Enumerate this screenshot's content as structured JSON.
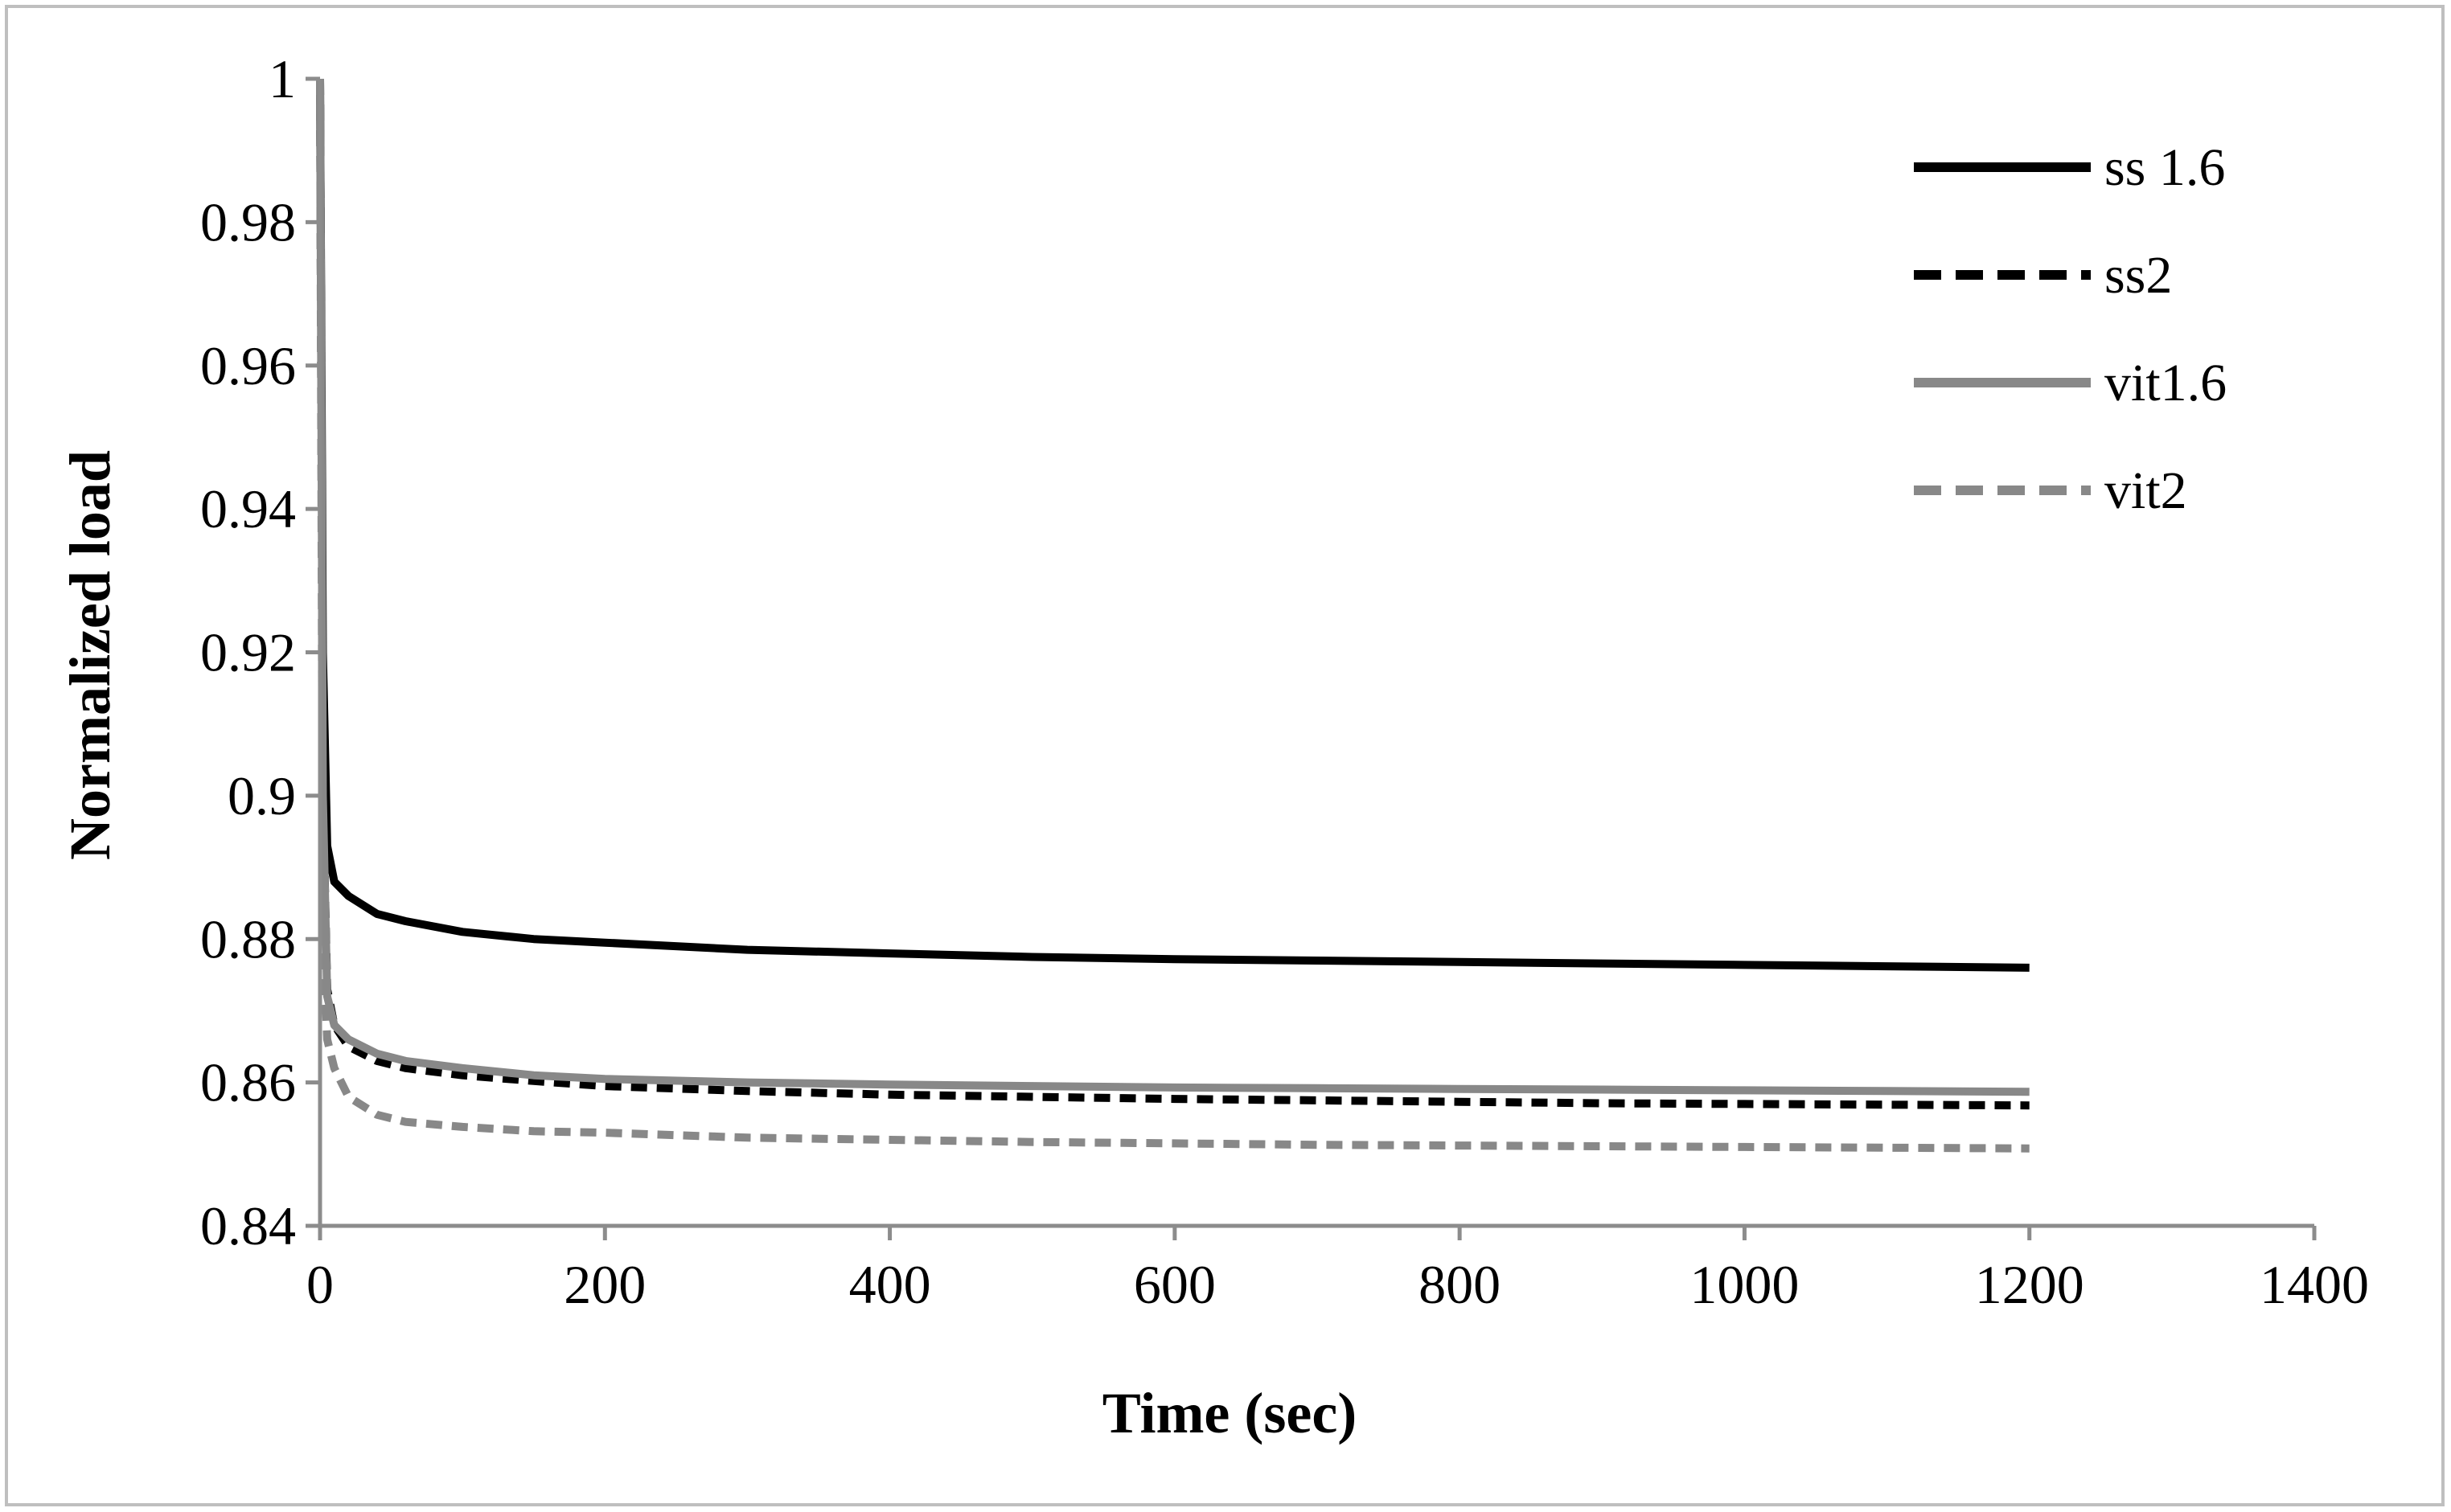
{
  "chart_data": {
    "type": "line",
    "title": "",
    "xlabel": "Time (sec)",
    "ylabel": "Normalized load",
    "xlim": [
      0,
      1400
    ],
    "ylim": [
      0.84,
      1
    ],
    "x_ticks": [
      0,
      200,
      400,
      600,
      800,
      1000,
      1200,
      1400
    ],
    "x_tick_labels": [
      "0",
      "200",
      "400",
      "600",
      "800",
      "1000",
      "1200",
      "1400"
    ],
    "y_ticks": [
      0.84,
      0.86,
      0.88,
      0.9,
      0.92,
      0.94,
      0.96,
      0.98,
      1
    ],
    "y_tick_labels": [
      "0.84",
      "0.86",
      "0.88",
      "0.9",
      "0.92",
      "0.94",
      "0.96",
      "0.98",
      "1"
    ],
    "grid": false,
    "legend_position": "top-right",
    "series": [
      {
        "name": "ss 1.6",
        "color": "#000000",
        "dash": "solid",
        "x": [
          0,
          1,
          2,
          5,
          10,
          20,
          40,
          60,
          100,
          150,
          200,
          300,
          400,
          500,
          600,
          700,
          800,
          900,
          1000,
          1100,
          1200
        ],
        "y": [
          1.0,
          0.96,
          0.92,
          0.893,
          0.888,
          0.886,
          0.8835,
          0.8825,
          0.881,
          0.88,
          0.8795,
          0.8785,
          0.878,
          0.8775,
          0.8772,
          0.877,
          0.8768,
          0.8766,
          0.8764,
          0.8762,
          0.876
        ]
      },
      {
        "name": "ss2",
        "color": "#000000",
        "dash": "dashed",
        "x": [
          0,
          1,
          2,
          5,
          10,
          20,
          40,
          60,
          100,
          150,
          200,
          300,
          400,
          500,
          600,
          700,
          800,
          900,
          1000,
          1100,
          1200
        ],
        "y": [
          1.0,
          0.95,
          0.9,
          0.873,
          0.868,
          0.865,
          0.863,
          0.862,
          0.861,
          0.8602,
          0.8595,
          0.8588,
          0.8583,
          0.858,
          0.8577,
          0.8575,
          0.8573,
          0.8571,
          0.857,
          0.8569,
          0.8568
        ]
      },
      {
        "name": "vit1.6",
        "color": "#888888",
        "dash": "solid",
        "x": [
          0,
          1,
          2,
          5,
          10,
          20,
          40,
          60,
          100,
          150,
          200,
          300,
          400,
          500,
          600,
          700,
          800,
          900,
          1000,
          1100,
          1200
        ],
        "y": [
          1.0,
          0.95,
          0.9,
          0.872,
          0.868,
          0.866,
          0.864,
          0.863,
          0.862,
          0.861,
          0.8605,
          0.86,
          0.8597,
          0.8595,
          0.8593,
          0.8592,
          0.8591,
          0.859,
          0.8589,
          0.8588,
          0.8587
        ]
      },
      {
        "name": "vit2",
        "color": "#888888",
        "dash": "dashed",
        "x": [
          0,
          1,
          2,
          5,
          10,
          20,
          40,
          60,
          100,
          150,
          200,
          300,
          400,
          500,
          600,
          700,
          800,
          900,
          1000,
          1100,
          1200
        ],
        "y": [
          1.0,
          0.94,
          0.88,
          0.866,
          0.862,
          0.858,
          0.8555,
          0.8545,
          0.8538,
          0.8532,
          0.853,
          0.8523,
          0.852,
          0.8517,
          0.8515,
          0.8513,
          0.8512,
          0.8511,
          0.851,
          0.8509,
          0.8508
        ]
      }
    ]
  }
}
